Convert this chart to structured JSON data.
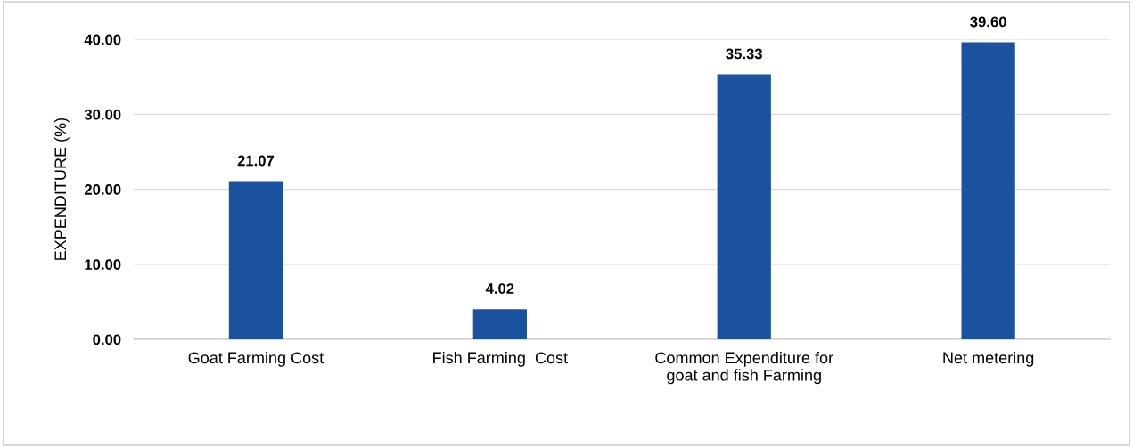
{
  "chart_data": {
    "type": "bar",
    "ylabel": "EXPENDITURE (%)",
    "categories": [
      "Goat Farming Cost",
      "Fish Farming  Cost",
      "Common Expenditure for\ngoat and fish Farming",
      "Net metering"
    ],
    "values": [
      21.07,
      4.02,
      35.33,
      39.6
    ],
    "value_labels": [
      "21.07",
      "4.02",
      "35.33",
      "39.60"
    ],
    "color": "#1b52a0",
    "ylim": [
      0,
      40
    ],
    "yticks": [
      {
        "value": 0,
        "label": "0.00"
      },
      {
        "value": 10,
        "label": "10.00"
      },
      {
        "value": 20,
        "label": "20.00"
      },
      {
        "value": 30,
        "label": "30.00"
      },
      {
        "value": 40,
        "label": "40.00"
      }
    ],
    "grid": "y"
  }
}
